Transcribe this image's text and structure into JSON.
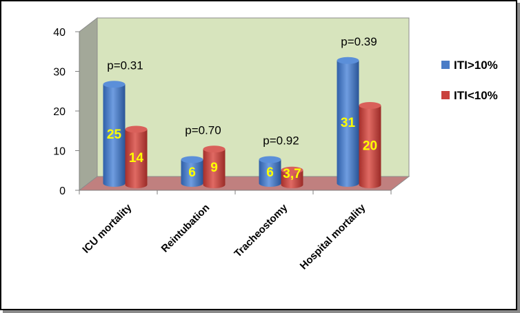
{
  "chart_data": {
    "type": "bar",
    "categories": [
      "ICU mortality",
      "Reintubation",
      "Tracheostomy",
      "Hospital mortality"
    ],
    "series": [
      {
        "name": "ITI>10%",
        "values": [
          25,
          6,
          6,
          31
        ],
        "labels": [
          "25",
          "6",
          "6",
          "31"
        ],
        "color": "#4a7cc7"
      },
      {
        "name": "ITI<10%",
        "values": [
          14,
          9,
          3.7,
          20
        ],
        "labels": [
          "14",
          "9",
          "3,7",
          "20"
        ],
        "color": "#c9413c"
      }
    ],
    "annotations": [
      "p=0.31",
      "p=0.70",
      "p=0.92",
      "p=0.39"
    ],
    "yticks": [
      "0",
      "10",
      "20",
      "30",
      "40"
    ],
    "ylim": [
      0,
      40
    ],
    "grid": false,
    "legend_position": "right",
    "wall_color": "#d7e4bd",
    "floor_color": "#c0807f",
    "side_wall_color": "#a3a899"
  }
}
